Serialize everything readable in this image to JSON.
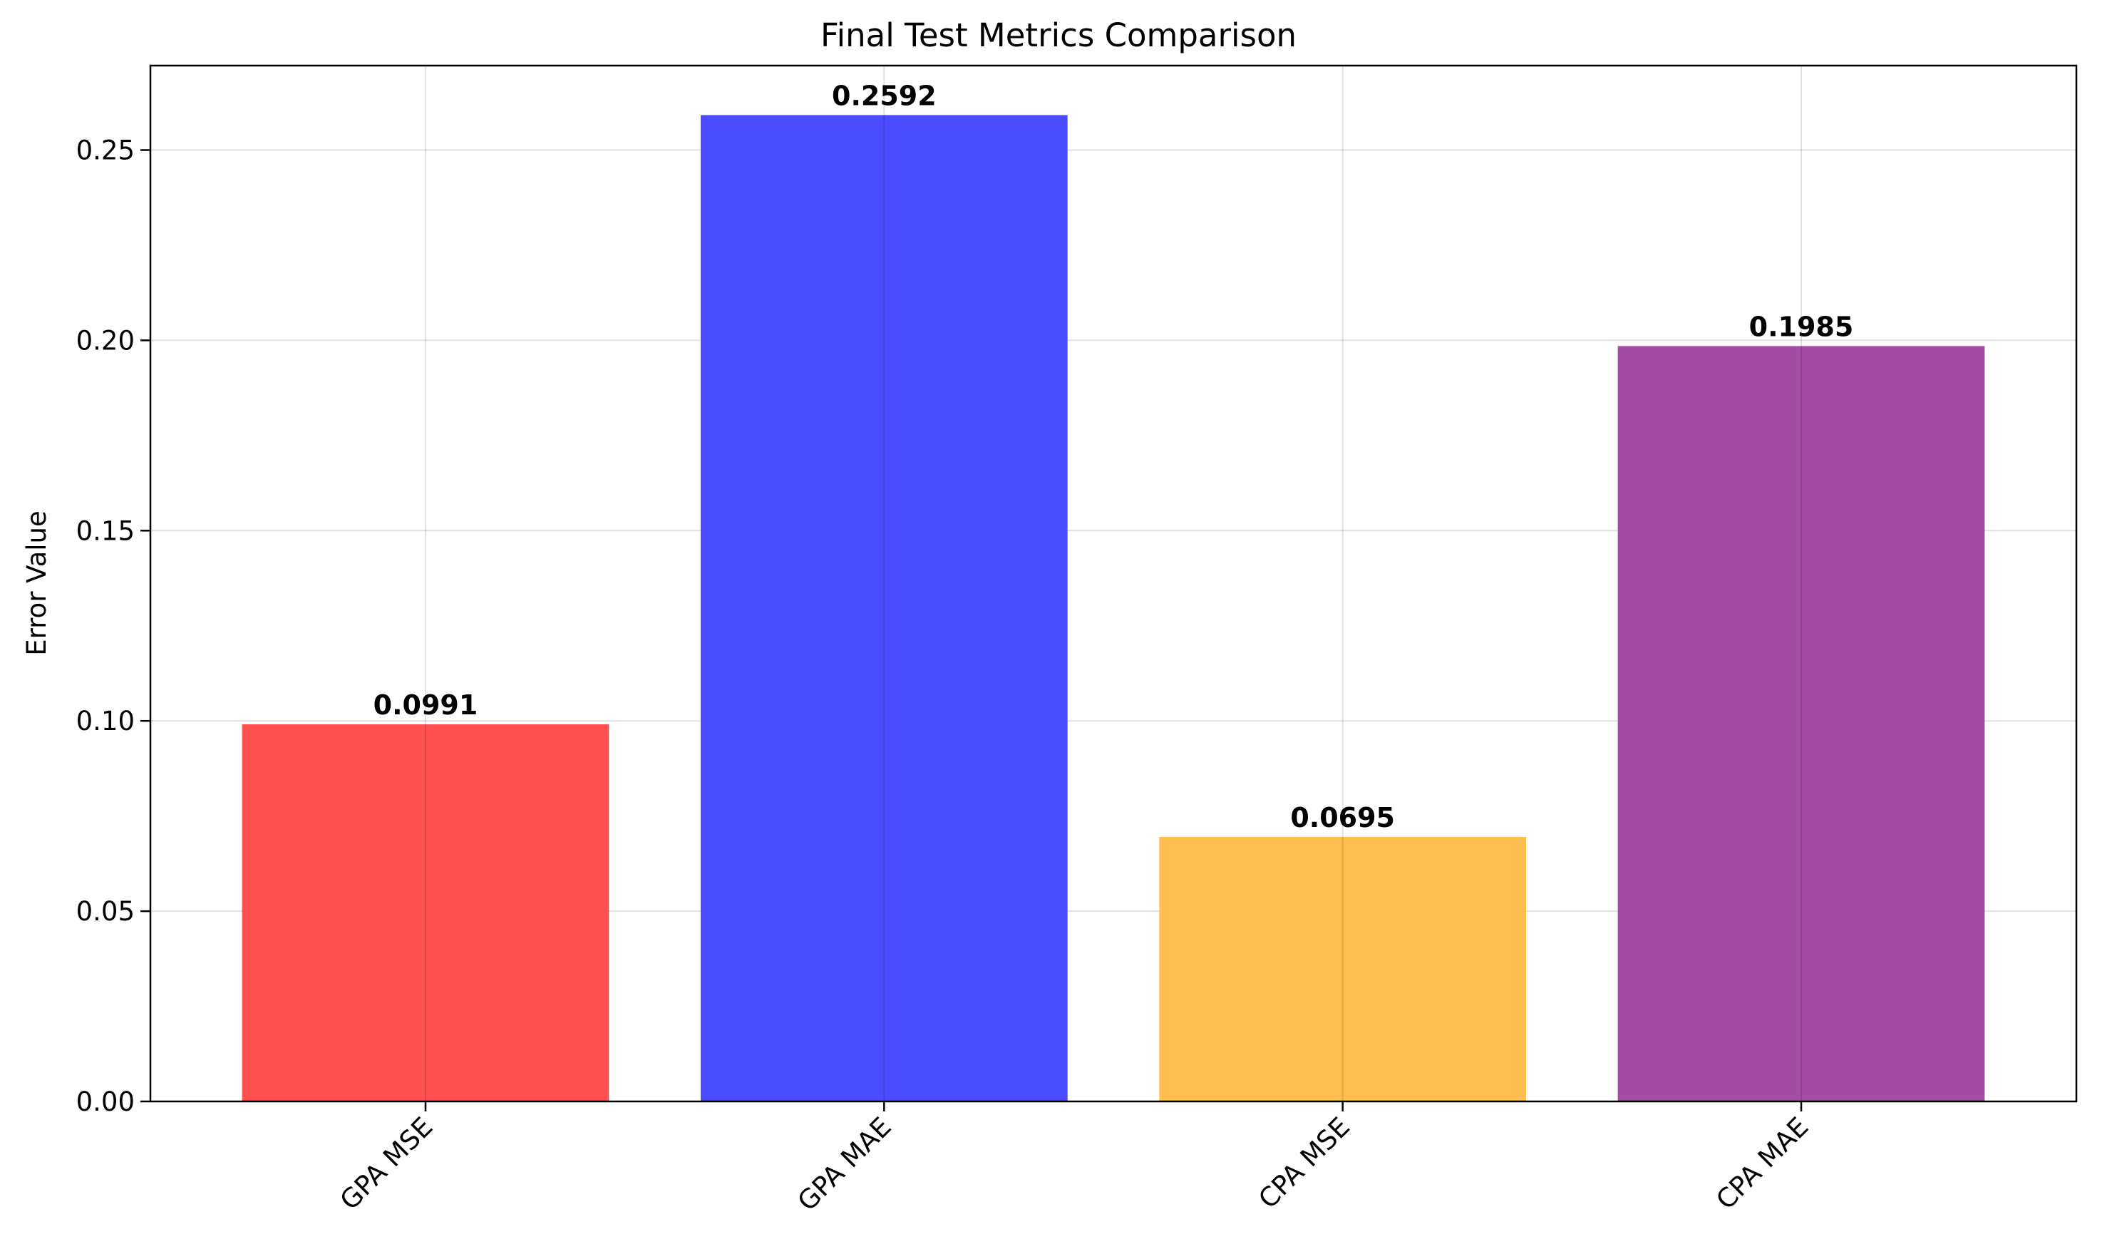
{
  "chart_data": {
    "type": "bar",
    "title": "Final Test Metrics Comparison",
    "xlabel": "",
    "ylabel": "Error Value",
    "categories": [
      "GPA MSE",
      "GPA MAE",
      "CPA MSE",
      "CPA MAE"
    ],
    "values": [
      0.0991,
      0.2592,
      0.0695,
      0.1985
    ],
    "value_labels": [
      "0.0991",
      "0.2592",
      "0.0695",
      "0.1985"
    ],
    "bar_colors": [
      "#ff4f4f",
      "#4b4bff",
      "#ffbe4f",
      "#a44ca4"
    ],
    "ylim": [
      0,
      0.2722
    ],
    "yticks": [
      0.0,
      0.05,
      0.1,
      0.15,
      0.2,
      0.25
    ],
    "ytick_labels": [
      "0.00",
      "0.05",
      "0.10",
      "0.15",
      "0.20",
      "0.25"
    ],
    "grid": true,
    "legend": false
  }
}
